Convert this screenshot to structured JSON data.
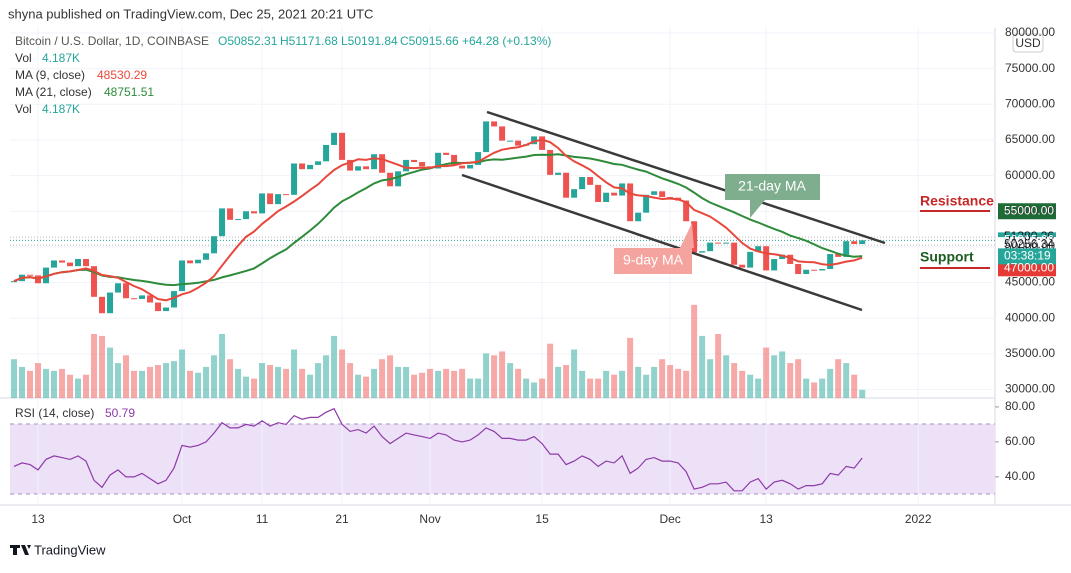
{
  "header": {
    "publisher": "shyna published on TradingView.com, Dec 25, 2021 20:21 UTC",
    "brand": "TradingView"
  },
  "chart_data": {
    "type": "candlestick",
    "title": "Bitcoin / U.S. Dollar, 1D, COINBASE",
    "ohlc": [
      "O50852.31",
      "H51171.68",
      "L50191.84",
      "C50915.66"
    ],
    "change": "+64.28 (+0.13%)",
    "legend": [
      {
        "label": "Vol",
        "value": "4.187K",
        "color": "#26a69a"
      },
      {
        "label": "MA (9, close)",
        "value": "48530.29",
        "color": "#e8483c"
      },
      {
        "label": "MA (21, close)",
        "value": "48751.51",
        "color": "#2e8b3a"
      },
      {
        "label": "Vol",
        "value": "4.187K",
        "color": "#26a69a"
      }
    ],
    "currency": "USD",
    "countdown": "03:38:19",
    "up_color": "#26a69a",
    "down_color": "#ef5350",
    "close": [
      45200,
      46100,
      46000,
      44900,
      47100,
      48100,
      47800,
      47300,
      48300,
      47300,
      43000,
      40700,
      43600,
      44900,
      42800,
      42700,
      43200,
      42200,
      41000,
      41500,
      43800,
      48100,
      47700,
      48200,
      49100,
      51500,
      55400,
      53800,
      53900,
      55000,
      54700,
      57500,
      56000,
      57400,
      57300,
      61700,
      60900,
      61500,
      62000,
      64300,
      66000,
      62200,
      60700,
      61300,
      60900,
      63000,
      60400,
      58500,
      60600,
      62200,
      61900,
      61300,
      61000,
      63200,
      62900,
      61400,
      61000,
      61500,
      63300,
      67600,
      66900,
      64900,
      64900,
      64200,
      64400,
      65500,
      63600,
      60100,
      60400,
      56900,
      58100,
      59800,
      58700,
      56300,
      57600,
      57200,
      58900,
      53600,
      54800,
      57300,
      57800,
      57000,
      56900,
      56500,
      53600,
      49200,
      49400,
      50600,
      50500,
      50600,
      47500,
      47100,
      49300,
      50100,
      46700,
      48300,
      48900,
      47600,
      46200,
      46800,
      46700,
      46900,
      49000,
      48600,
      50800,
      50400,
      50915.66
    ],
    "volume": {
      "name": "Vol",
      "values": [
        20,
        16,
        14,
        18,
        15,
        14,
        15,
        12,
        10,
        12,
        33,
        32,
        26,
        18,
        22,
        14,
        14,
        16,
        17,
        18,
        19,
        25,
        14,
        13,
        16,
        22,
        33,
        20,
        15,
        11,
        10,
        18,
        17,
        16,
        15,
        25,
        15,
        12,
        18,
        22,
        32,
        25,
        18,
        12,
        11,
        15,
        20,
        22,
        16,
        16,
        12,
        13,
        15,
        14,
        15,
        14,
        15,
        10,
        10,
        23,
        22,
        24,
        18,
        15,
        10,
        8,
        10,
        28,
        16,
        17,
        25,
        14,
        10,
        10,
        14,
        12,
        14,
        31,
        16,
        12,
        16,
        20,
        17,
        15,
        14,
        48,
        32,
        20,
        33,
        22,
        18,
        14,
        12,
        10,
        26,
        22,
        24,
        18,
        20,
        10,
        8,
        10,
        15,
        20,
        18,
        12,
        4.187
      ]
    },
    "ylim": [
      28810,
      80700
    ],
    "yticks": [
      {
        "value": 30000,
        "label": "30000.00"
      },
      {
        "value": 35000,
        "label": "35000.00"
      },
      {
        "value": 40000,
        "label": "40000.00"
      },
      {
        "value": 45000,
        "label": "45000.00"
      },
      {
        "value": 50000,
        "label": "50000.00"
      },
      {
        "value": 55000,
        "label": "55000.00"
      },
      {
        "value": 60000,
        "label": "60000.00"
      },
      {
        "value": 65000,
        "label": "65000.00"
      },
      {
        "value": 70000,
        "label": "70000.00"
      },
      {
        "value": 75000,
        "label": "75000.00"
      },
      {
        "value": 80000,
        "label": "80000.00"
      }
    ],
    "xlim": [
      -0.5,
      122.6
    ],
    "xticks": [
      {
        "value": 3,
        "label": "13"
      },
      {
        "value": 21,
        "label": "Oct"
      },
      {
        "value": 31,
        "label": "11"
      },
      {
        "value": 41,
        "label": "21"
      },
      {
        "value": 52,
        "label": "Nov"
      },
      {
        "value": 66,
        "label": "15"
      },
      {
        "value": 82,
        "label": "Dec"
      },
      {
        "value": 94,
        "label": "13"
      },
      {
        "value": 113,
        "label": "2022"
      }
    ],
    "price_labels": [
      {
        "value": 55000,
        "label": "55000.00",
        "color": "#1e6b35"
      },
      {
        "value": 51380.36,
        "label": "51380.36",
        "color": "#ffffff"
      },
      {
        "value": 50915.66,
        "label": "50915.66",
        "color": "#26a69a"
      },
      {
        "value": 50256.34,
        "label": "50256.34",
        "color": "#ffffff"
      },
      {
        "value": 47000,
        "label": "47000.00",
        "color": "#e53935"
      }
    ],
    "annotations": {
      "ma21": "21-day MA",
      "ma9": "9-day MA",
      "resistance": "Resistance",
      "support": "Support"
    },
    "rsi": {
      "name": "RSI (14, close)",
      "last": "50.79",
      "color": "#8e3aa8",
      "ylim": [
        23.9,
        85.1
      ],
      "yticks": [
        {
          "value": 40,
          "label": "40.00"
        },
        {
          "value": 60,
          "label": "60.00"
        },
        {
          "value": 80,
          "label": "80.00"
        }
      ],
      "values": [
        46,
        48,
        47,
        44,
        50,
        52,
        51,
        50,
        52,
        49,
        38,
        34,
        41,
        44,
        40,
        40,
        42,
        39,
        36,
        38,
        45,
        58,
        57,
        58,
        60,
        65,
        71,
        68,
        68,
        70,
        69,
        72,
        69,
        71,
        70,
        75,
        73,
        74,
        74,
        77,
        79,
        70,
        66,
        67,
        65,
        69,
        63,
        59,
        62,
        65,
        64,
        63,
        62,
        65,
        64,
        61,
        60,
        61,
        64,
        68,
        66,
        62,
        62,
        61,
        61,
        63,
        59,
        53,
        53,
        47,
        49,
        52,
        50,
        46,
        49,
        48,
        52,
        42,
        45,
        50,
        51,
        49,
        49,
        48,
        43,
        33,
        34,
        36,
        36,
        37,
        32,
        32,
        37,
        39,
        33,
        37,
        38,
        36,
        33,
        35,
        35,
        36,
        42,
        41,
        46,
        45,
        50.79
      ]
    }
  }
}
